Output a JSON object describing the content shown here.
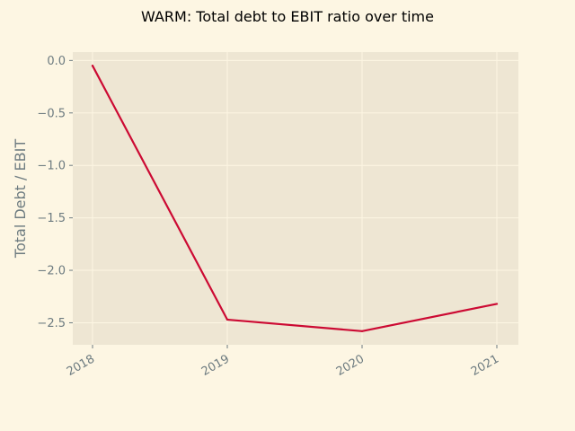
{
  "chart_data": {
    "type": "line",
    "title": "WARM: Total debt to EBIT ratio over time",
    "xlabel": "",
    "ylabel": "Total Debt / EBIT",
    "categories": [
      "2018",
      "2019",
      "2020",
      "2021"
    ],
    "series": [
      {
        "values": [
          -0.05,
          -2.47,
          -2.58,
          -2.32
        ]
      }
    ],
    "yticks": [
      0.0,
      -0.5,
      -1.0,
      -1.5,
      -2.0,
      -2.5
    ],
    "ytick_labels": [
      "0.0",
      "−0.5",
      "−1.0",
      "−1.5",
      "−2.0",
      "−2.5"
    ],
    "ylim": [
      -2.71,
      0.08
    ],
    "grid": true,
    "colors": {
      "figure_background": "#fdf6e3",
      "plot_background": "#eee6d3",
      "grid": "#fdf6e3",
      "line": "#cc0a33",
      "tick_text": "#6d7b80",
      "title_text": "#000000"
    }
  }
}
